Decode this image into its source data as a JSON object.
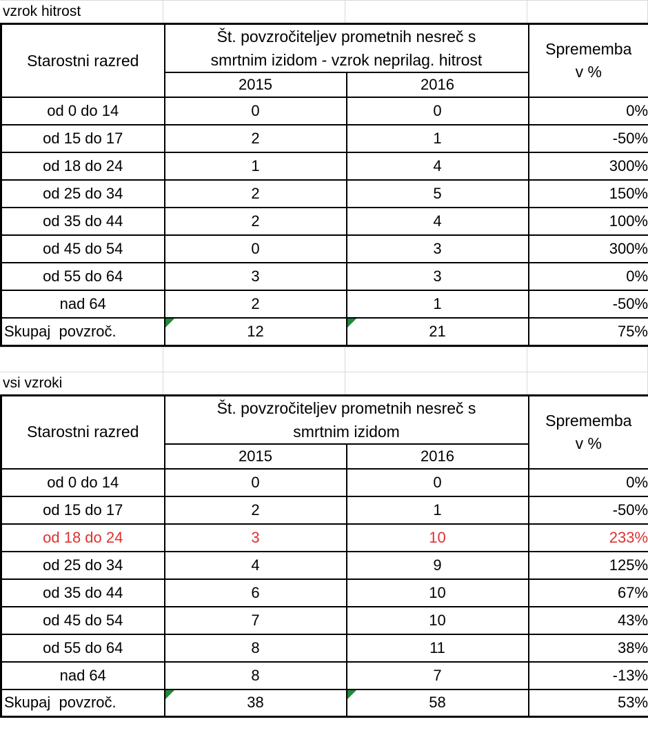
{
  "colors": {
    "text": "#000000",
    "table_border": "#000000",
    "gridline": "#d9d9d9",
    "highlight_red": "#e03030",
    "flag_green": "#218a38",
    "background": "#ffffff"
  },
  "tables": [
    {
      "caption": "vzrok hitrost",
      "header": {
        "row_label": "Starostni razred",
        "span_line1": "Št. povzročiteljev prometnih nesreč s",
        "span_line2": "smrtnim izidom - vzrok neprilag. hitrost",
        "years": [
          "2015",
          "2016"
        ],
        "change_line1": "Sprememba",
        "change_line2": "v %"
      },
      "rows": [
        {
          "label": "od 0 do 14",
          "y2015": "0",
          "y2016": "0",
          "change": "0%"
        },
        {
          "label": "od 15 do 17",
          "y2015": "2",
          "y2016": "1",
          "change": "-50%"
        },
        {
          "label": "od 18 do 24",
          "y2015": "1",
          "y2016": "4",
          "change": "300%"
        },
        {
          "label": "od 25 do 34",
          "y2015": "2",
          "y2016": "5",
          "change": "150%"
        },
        {
          "label": "od 35 do 44",
          "y2015": "2",
          "y2016": "4",
          "change": "100%"
        },
        {
          "label": "od 45 do 54",
          "y2015": "0",
          "y2016": "3",
          "change": "300%"
        },
        {
          "label": "od 55 do 64",
          "y2015": "3",
          "y2016": "3",
          "change": "0%"
        },
        {
          "label": "nad 64",
          "y2015": "2",
          "y2016": "1",
          "change": "-50%"
        },
        {
          "label": "Skupaj  povzroč.",
          "y2015": "12",
          "y2016": "21",
          "change": "75%"
        }
      ]
    },
    {
      "caption": "vsi vzroki",
      "header": {
        "row_label": "Starostni razred",
        "span_line1": "Št. povzročiteljev prometnih nesreč s",
        "span_line2": "smrtnim izidom",
        "years": [
          "2015",
          "2016"
        ],
        "change_line1": "Sprememba",
        "change_line2": "v %"
      },
      "rows": [
        {
          "label": "od 0 do 14",
          "y2015": "0",
          "y2016": "0",
          "change": "0%"
        },
        {
          "label": "od 15 do 17",
          "y2015": "2",
          "y2016": "1",
          "change": "-50%"
        },
        {
          "label": "od 18 do 24",
          "y2015": "3",
          "y2016": "10",
          "change": "233%"
        },
        {
          "label": "od 25 do 34",
          "y2015": "4",
          "y2016": "9",
          "change": "125%"
        },
        {
          "label": "od 35 do 44",
          "y2015": "6",
          "y2016": "10",
          "change": "67%"
        },
        {
          "label": "od 45 do 54",
          "y2015": "7",
          "y2016": "10",
          "change": "43%"
        },
        {
          "label": "od 55 do 64",
          "y2015": "8",
          "y2016": "11",
          "change": "38%"
        },
        {
          "label": "nad 64",
          "y2015": "8",
          "y2016": "7",
          "change": "-13%"
        },
        {
          "label": "Skupaj  povzroč.",
          "y2015": "38",
          "y2016": "58",
          "change": "53%"
        }
      ]
    }
  ]
}
